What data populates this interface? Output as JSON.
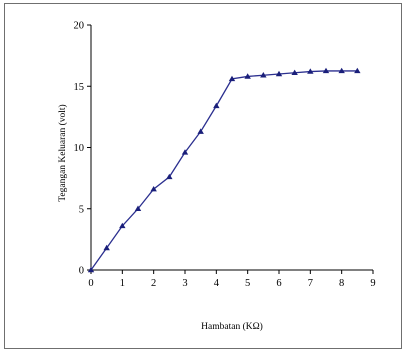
{
  "chart_data": {
    "type": "line",
    "title": "",
    "xlabel": "Hambatan (KΩ)",
    "ylabel": "Tegangan Keluaran (volt)",
    "xlim": [
      0,
      9
    ],
    "ylim": [
      0,
      20
    ],
    "xticks": [
      "0",
      "1",
      "2",
      "3",
      "4",
      "5",
      "6",
      "7",
      "8",
      "9"
    ],
    "yticks": [
      "0",
      "5",
      "10",
      "15",
      "20"
    ],
    "grid": false,
    "legend": "none",
    "marker": "triangle",
    "line_color": "#2b2f8f",
    "marker_color": "#1a1f7a",
    "series": [
      {
        "x": [
          0,
          0.5,
          1,
          1.5,
          2,
          2.5,
          3,
          3.5,
          4,
          4.5,
          5,
          5.5,
          6,
          6.5,
          7,
          7.5,
          8,
          8.5
        ],
        "y": [
          0,
          1.8,
          3.6,
          5.0,
          6.6,
          7.6,
          9.6,
          11.3,
          13.4,
          15.6,
          15.8,
          15.9,
          16.0,
          16.1,
          16.2,
          16.25,
          16.25,
          16.25
        ]
      }
    ]
  }
}
